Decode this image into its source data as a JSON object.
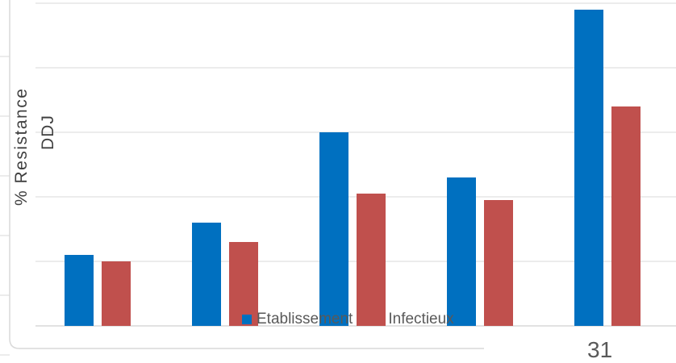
{
  "page": {
    "slide_number": "31"
  },
  "colors": {
    "etablissement": "#0070C0",
    "infectieux": "#C0504D",
    "grid": "#D9D9D9"
  },
  "chart_data": {
    "type": "bar",
    "ylabel": "% Resistance",
    "ylabel2": "DDJ",
    "categories": [
      "",
      "",
      "",
      "",
      ""
    ],
    "ylim": [
      0,
      5
    ],
    "grid": true,
    "legend_position": "bottom",
    "series": [
      {
        "name": "Etablissement",
        "values": [
          1.1,
          1.6,
          3.0,
          2.3,
          4.9
        ]
      },
      {
        "name": "Infectieux",
        "values": [
          1.0,
          1.3,
          2.05,
          1.95,
          3.4
        ]
      }
    ]
  }
}
